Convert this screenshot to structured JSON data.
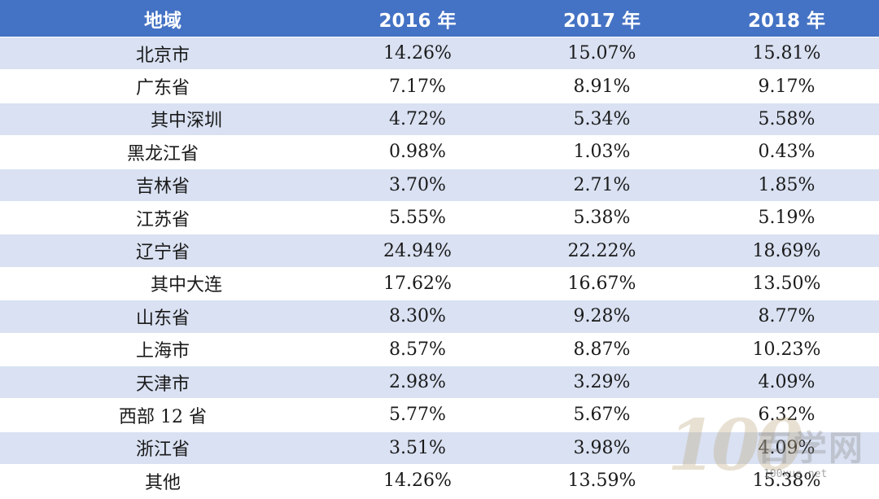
{
  "table": {
    "headers": [
      "地域",
      "2016 年",
      "2017 年",
      "2018 年"
    ],
    "rows": [
      {
        "region": "北京市",
        "indent": false,
        "values": [
          "14.26%",
          "15.07%",
          "15.81%"
        ]
      },
      {
        "region": "广东省",
        "indent": false,
        "values": [
          "7.17%",
          "8.91%",
          "9.17%"
        ]
      },
      {
        "region": "其中深圳",
        "indent": true,
        "values": [
          "4.72%",
          "5.34%",
          "5.58%"
        ]
      },
      {
        "region": "黑龙江省",
        "indent": false,
        "values": [
          "0.98%",
          "1.03%",
          "0.43%"
        ]
      },
      {
        "region": "吉林省",
        "indent": false,
        "values": [
          "3.70%",
          "2.71%",
          "1.85%"
        ]
      },
      {
        "region": "江苏省",
        "indent": false,
        "values": [
          "5.55%",
          "5.38%",
          "5.19%"
        ]
      },
      {
        "region": "辽宁省",
        "indent": false,
        "values": [
          "24.94%",
          "22.22%",
          "18.69%"
        ]
      },
      {
        "region": "其中大连",
        "indent": true,
        "values": [
          "17.62%",
          "16.67%",
          "13.50%"
        ]
      },
      {
        "region": "山东省",
        "indent": false,
        "values": [
          "8.30%",
          "9.28%",
          "8.77%"
        ]
      },
      {
        "region": "上海市",
        "indent": false,
        "values": [
          "8.57%",
          "8.87%",
          "10.23%"
        ]
      },
      {
        "region": "天津市",
        "indent": false,
        "values": [
          "2.98%",
          "3.29%",
          "4.09%"
        ]
      },
      {
        "region": "西部 12 省",
        "indent": false,
        "values": [
          "5.77%",
          "5.67%",
          "6.32%"
        ]
      },
      {
        "region": "浙江省",
        "indent": false,
        "values": [
          "3.51%",
          "3.98%",
          "4.09%"
        ]
      },
      {
        "region": "其他",
        "indent": false,
        "values": [
          "14.26%",
          "13.59%",
          "15.38%"
        ]
      }
    ]
  },
  "watermark": {
    "number": "100",
    "text": "百学网",
    "url": "100xue.net"
  },
  "colors": {
    "header_bg": "#4472c4",
    "stripe_bg": "#d9e1f2"
  }
}
